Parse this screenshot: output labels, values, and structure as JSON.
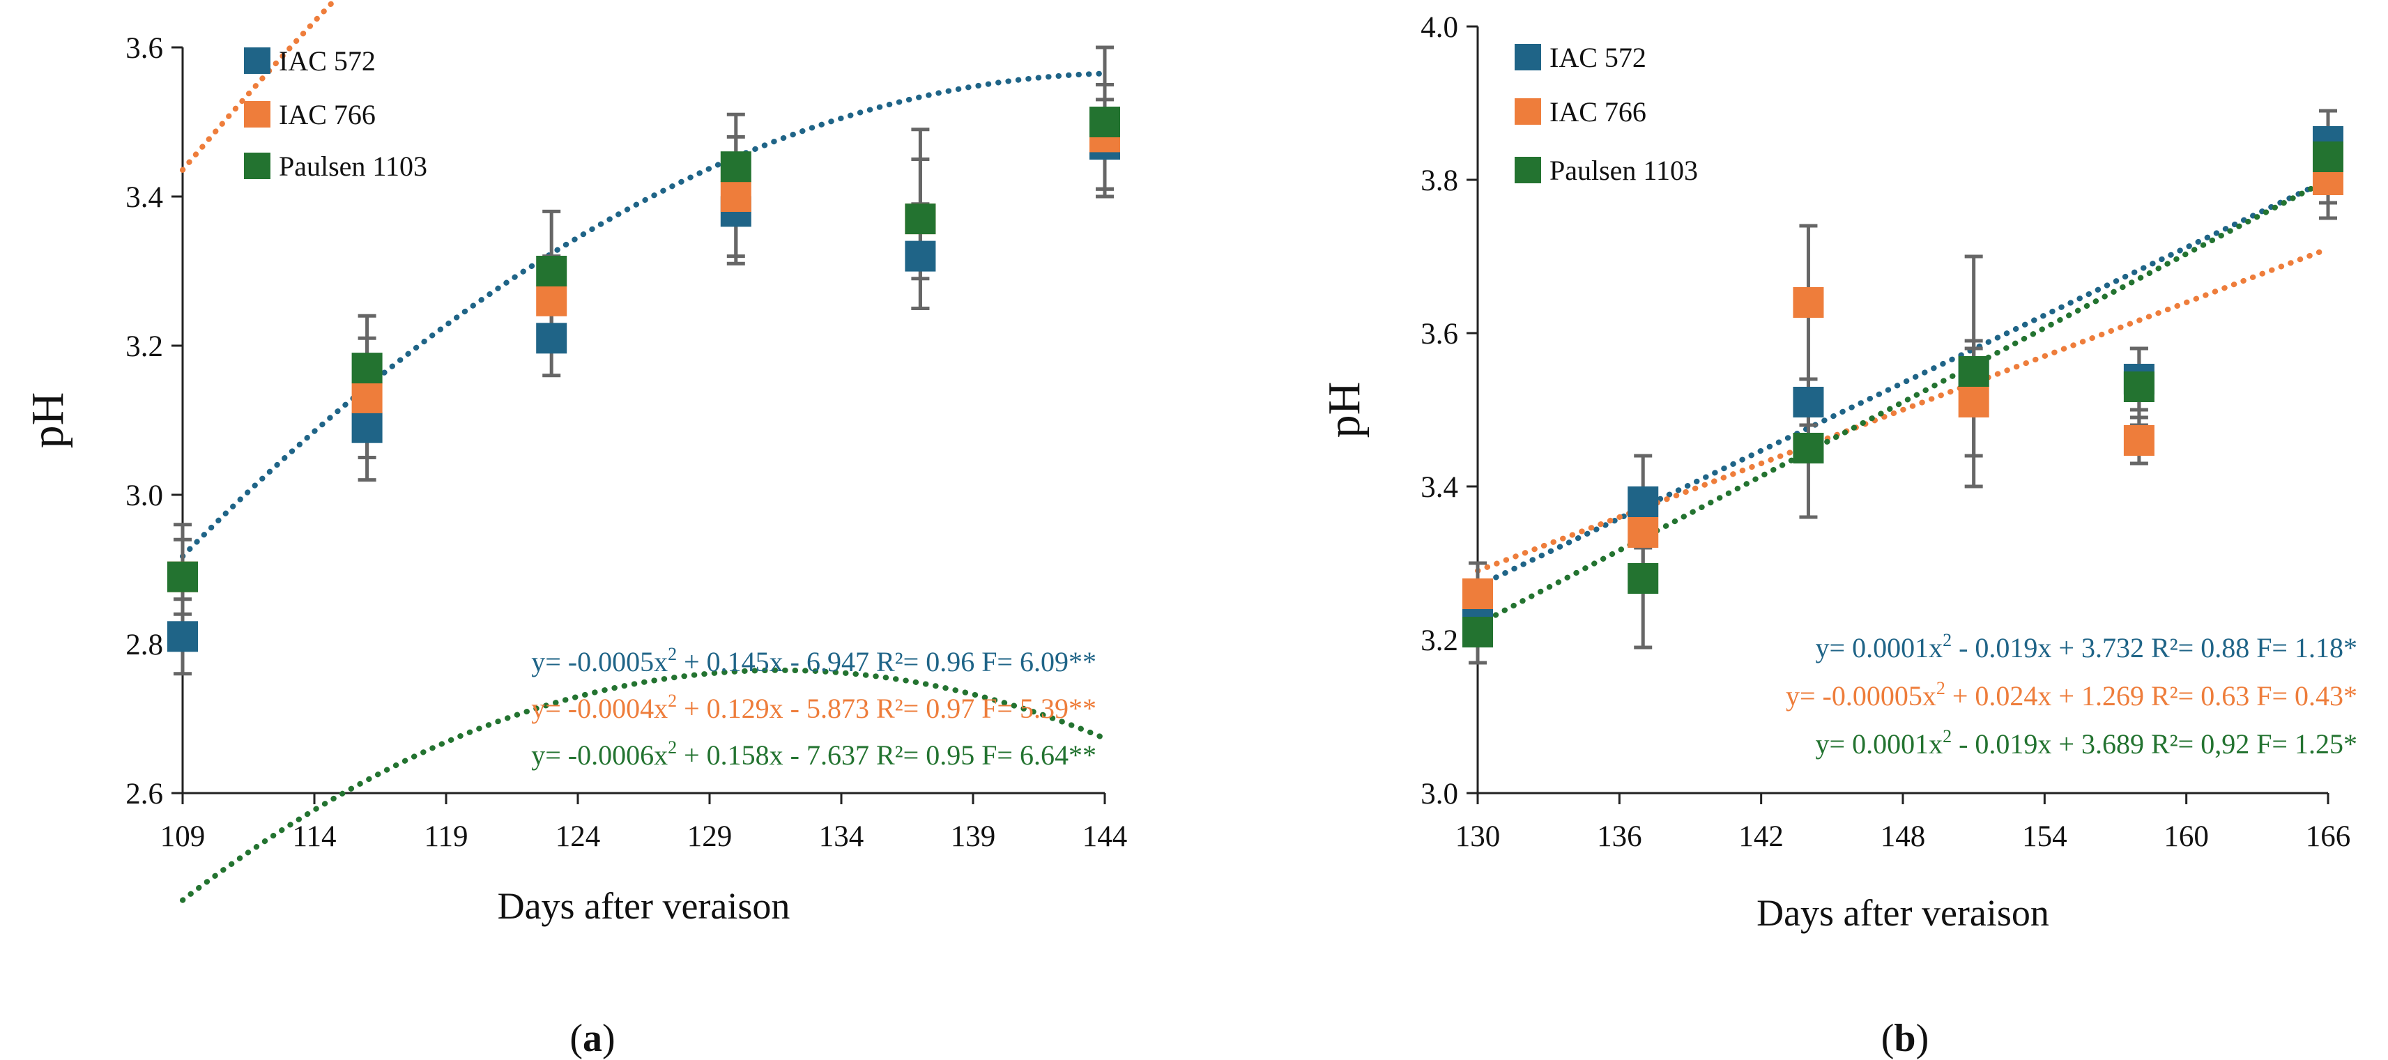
{
  "colors": {
    "IAC 572": "#1f6487",
    "IAC 766": "#ee7d3b",
    "Paulsen 1103": "#237330",
    "error_bar": "#666666",
    "axis": "#222222"
  },
  "chart_data": [
    {
      "panel_label": "a",
      "type": "scatter",
      "xlabel": "Days after veraison",
      "ylabel": "pH",
      "xlim": [
        109,
        144
      ],
      "ylim": [
        2.6,
        3.6
      ],
      "xticks": [
        109,
        114,
        119,
        124,
        129,
        134,
        139,
        144
      ],
      "yticks": [
        2.6,
        2.8,
        3.0,
        3.2,
        3.4,
        3.6
      ],
      "ytick_labels": [
        "2.6",
        "2.8",
        "3.0",
        "3.2",
        "3.4",
        "3.6"
      ],
      "grid": false,
      "legend": "top-left",
      "series": [
        {
          "name": "IAC 572",
          "x": [
            109,
            116,
            123,
            130,
            137,
            144
          ],
          "y": [
            2.81,
            3.09,
            3.21,
            3.38,
            3.32,
            3.47
          ],
          "err": [
            0.05,
            0.07,
            0.05,
            0.07,
            0.07,
            0.06
          ],
          "trend": {
            "type": "poly2",
            "coef": [
              -0.0005,
              0.145,
              -6.947
            ]
          },
          "equation": {
            "prefix": "y= -0.0005x",
            "sup": "2",
            "suffix": " + 0.145x - 6.947 R²= 0.96 F= 6.09**"
          }
        },
        {
          "name": "IAC 766",
          "x": [
            109,
            116,
            123,
            130,
            137,
            144
          ],
          "y": [
            2.89,
            3.13,
            3.26,
            3.4,
            3.37,
            3.48
          ],
          "err": [
            0.05,
            0.08,
            0.06,
            0.08,
            0.08,
            0.07
          ],
          "trend": {
            "type": "poly2",
            "coef": [
              -0.0004,
              0.129,
              -5.873
            ]
          },
          "equation": {
            "prefix": "y= -0.0004x",
            "sup": "2",
            "suffix": " + 0.129x - 5.873 R²= 0.97 F= 5.39**"
          }
        },
        {
          "name": "Paulsen 1103",
          "x": [
            109,
            116,
            123,
            130,
            137,
            144
          ],
          "y": [
            2.89,
            3.17,
            3.3,
            3.44,
            3.37,
            3.5
          ],
          "err": [
            0.07,
            0.07,
            0.08,
            0.07,
            0.12,
            0.1
          ],
          "trend": {
            "type": "poly2",
            "coef": [
              -0.0006,
              0.158,
              -7.637
            ]
          },
          "equation": {
            "prefix": "y= -0.0006x",
            "sup": "2",
            "suffix": " + 0.158x - 7.637 R²= 0.95 F= 6.64**"
          }
        }
      ]
    },
    {
      "panel_label": "b",
      "type": "scatter",
      "xlabel": "Days after veraison",
      "ylabel": "pH",
      "xlim": [
        130,
        166
      ],
      "ylim": [
        3.0,
        4.0
      ],
      "xticks": [
        130,
        136,
        142,
        148,
        154,
        160,
        166
      ],
      "yticks": [
        3.0,
        3.2,
        3.4,
        3.6,
        3.8,
        4.0
      ],
      "ytick_labels": [
        "3.0",
        "3.2",
        "3.4",
        "3.6",
        "3.8",
        "4.0"
      ],
      "grid": false,
      "legend": "top-left",
      "series": [
        {
          "name": "IAC 572",
          "x": [
            130,
            137,
            144,
            151,
            158,
            166
          ],
          "y": [
            3.25,
            3.38,
            3.51,
            3.55,
            3.54,
            3.85
          ],
          "err": [
            0.05,
            0.06,
            0.03,
            0.04,
            0.04,
            0.04
          ],
          "trend": {
            "type": "line",
            "points": [
              [
                130,
                3.27
              ],
              [
                166,
                3.8
              ]
            ]
          },
          "equation": {
            "prefix": "y= 0.0001x",
            "sup": "2",
            "suffix": " - 0.019x + 3.732 R²= 0.88 F= 1.18*"
          }
        },
        {
          "name": "IAC 766",
          "x": [
            130,
            137,
            144,
            151,
            158,
            166
          ],
          "y": [
            3.26,
            3.34,
            3.64,
            3.51,
            3.46,
            3.8
          ],
          "err": [
            0.04,
            0.05,
            0.1,
            0.07,
            0.03,
            0.05
          ],
          "trend": {
            "type": "line",
            "points": [
              [
                130,
                3.29
              ],
              [
                166,
                3.71
              ]
            ]
          },
          "equation": {
            "prefix": "y= -0.00005x",
            "sup": "2",
            "suffix": " + 0.024x + 1.269 R²= 0.63 F= 0.43*"
          }
        },
        {
          "name": "Paulsen 1103",
          "x": [
            130,
            137,
            144,
            151,
            158,
            166
          ],
          "y": [
            3.21,
            3.28,
            3.45,
            3.55,
            3.53,
            3.83
          ],
          "err": [
            0.04,
            0.09,
            0.09,
            0.15,
            0.05,
            0.06
          ],
          "trend": {
            "type": "line",
            "points": [
              [
                130,
                3.22
              ],
              [
                166,
                3.8
              ]
            ]
          },
          "equation": {
            "prefix": "y= 0.0001x",
            "sup": "2",
            "suffix": " - 0.019x + 3.689 R²= 0,92 F= 1.25*"
          }
        }
      ]
    }
  ]
}
